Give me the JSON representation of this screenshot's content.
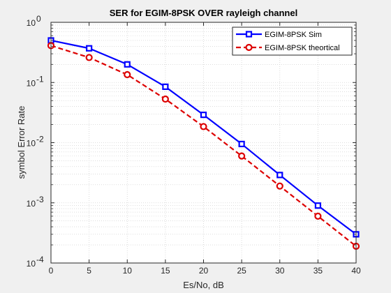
{
  "chart_data": {
    "type": "line",
    "title": "SER for EGIM-8PSK OVER rayleigh channel",
    "xlabel": "Es/No, dB",
    "ylabel": "symbol Error Rate",
    "x": [
      0,
      5,
      10,
      15,
      20,
      25,
      30,
      35,
      40
    ],
    "xlim": [
      0,
      40
    ],
    "ylim": [
      0.0001,
      1
    ],
    "yscale": "log",
    "xticks": [
      0,
      5,
      10,
      15,
      20,
      25,
      30,
      35,
      40
    ],
    "yticks": [
      {
        "value": 1,
        "base": "10",
        "exp": "0"
      },
      {
        "value": 0.1,
        "base": "10",
        "exp": "-1"
      },
      {
        "value": 0.01,
        "base": "10",
        "exp": "-2"
      },
      {
        "value": 0.001,
        "base": "10",
        "exp": "-3"
      },
      {
        "value": 0.0001,
        "base": "10",
        "exp": "-4"
      }
    ],
    "grid": true,
    "minor_grid": true,
    "legend_position": "top-right",
    "series": [
      {
        "name": "EGIM-8PSK Sim",
        "values": [
          0.5,
          0.37,
          0.2,
          0.085,
          0.029,
          0.0095,
          0.0029,
          0.0009,
          0.0003
        ],
        "color": "#0000ff",
        "line": "solid",
        "marker": "square"
      },
      {
        "name": "EGIM-8PSK theortical",
        "values": [
          0.41,
          0.26,
          0.135,
          0.053,
          0.0185,
          0.006,
          0.0019,
          0.0006,
          0.00019
        ],
        "color": "#dd0000",
        "line": "dashed",
        "marker": "circle"
      }
    ]
  }
}
